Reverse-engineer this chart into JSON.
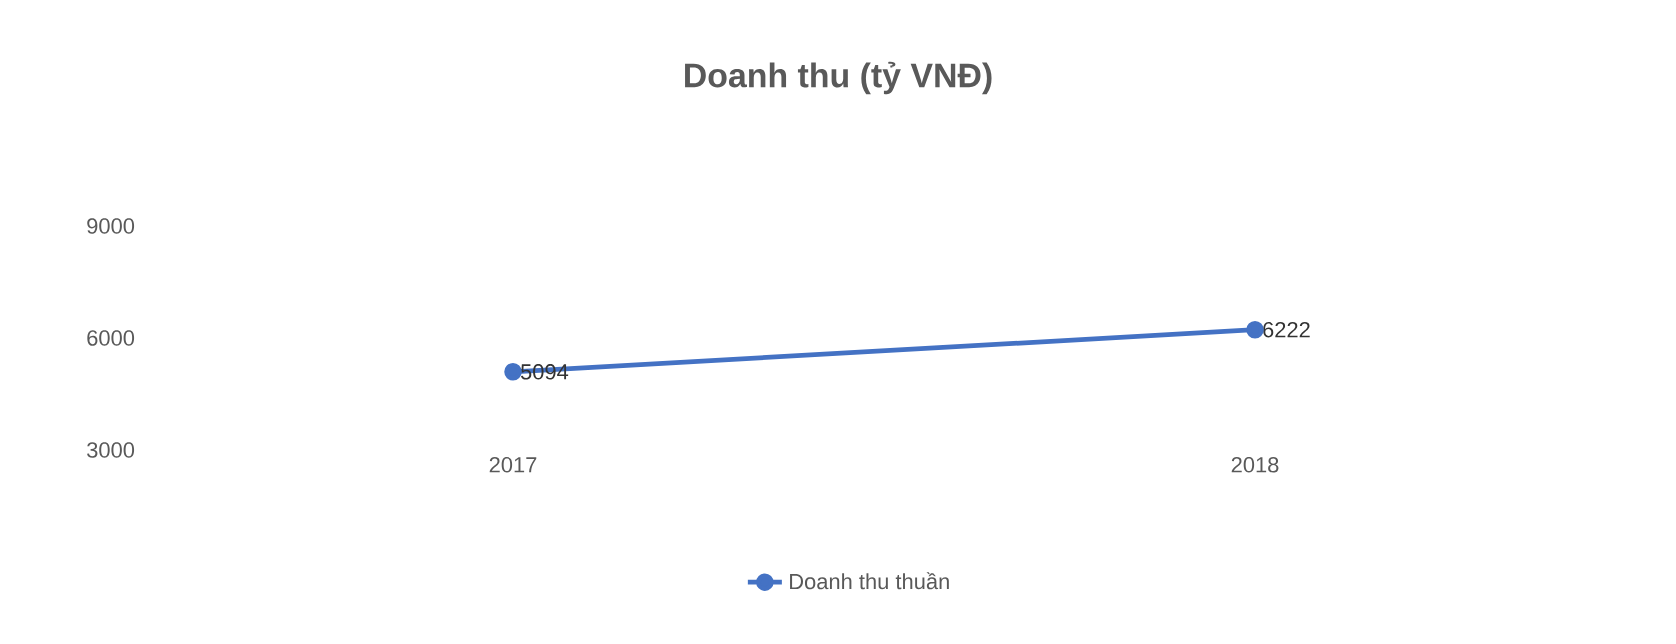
{
  "chart_data": {
    "type": "line",
    "title": "Doanh thu (tỷ VNĐ)",
    "categories": [
      "2017",
      "2018"
    ],
    "series": [
      {
        "name": "Doanh thu thuần",
        "color": "#4472c4",
        "values": [
          5094,
          6222
        ]
      }
    ],
    "ylim": [
      3000,
      9000
    ],
    "yticks": [
      3000,
      6000,
      9000
    ],
    "data_labels": true,
    "legend": "bottom",
    "marker": "circle"
  }
}
